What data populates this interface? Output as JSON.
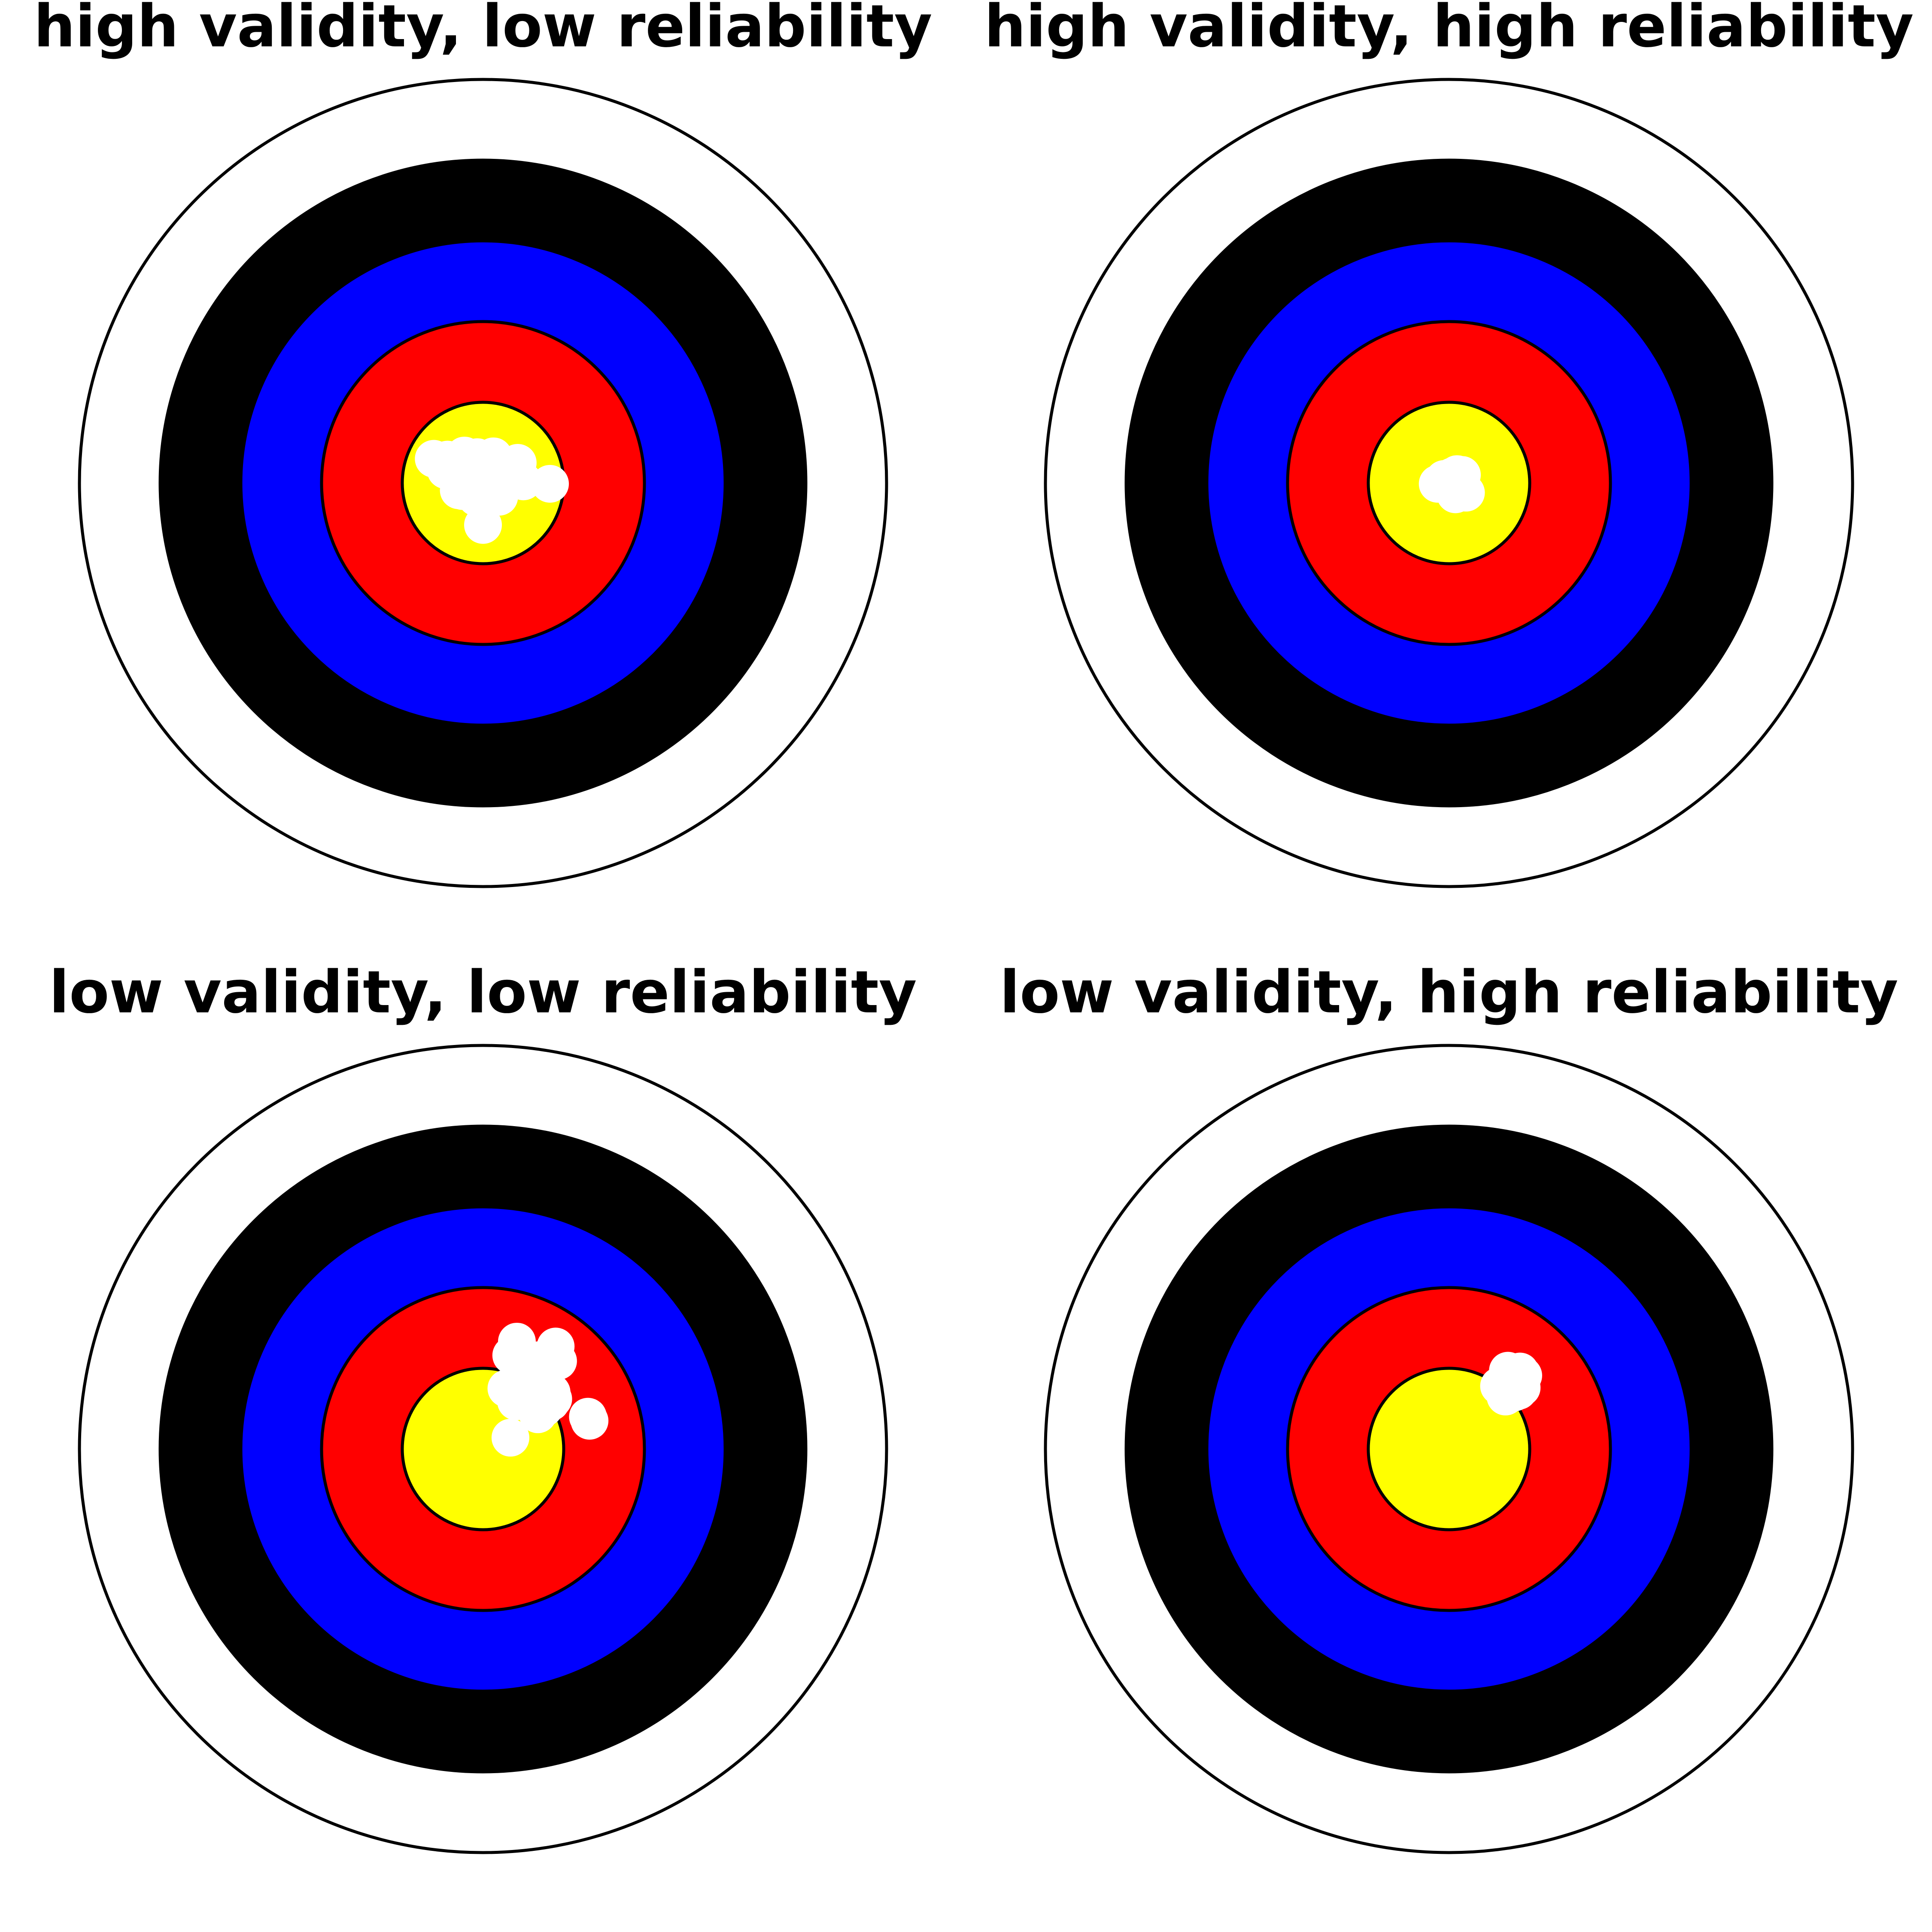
{
  "colors": {
    "background": "#ffffff",
    "outline": "#000000",
    "ring_outer": "#ffffff",
    "ring_black": "#000000",
    "ring_blue": "#0000ff",
    "ring_red": "#ff0000",
    "ring_gold": "#ffff00",
    "hit": "#ffffff"
  },
  "panels": [
    {
      "title": "high validity, low reliability",
      "hits": [
        [
          -0.61,
          0.3
        ],
        [
          -0.44,
          0.29
        ],
        [
          -0.23,
          0.34
        ],
        [
          -0.07,
          0.32
        ],
        [
          0.13,
          0.33
        ],
        [
          0.27,
          0.22
        ],
        [
          0.43,
          0.25
        ],
        [
          -0.46,
          0.16
        ],
        [
          -0.32,
          0.14
        ],
        [
          -0.17,
          0.13
        ],
        [
          0.05,
          0.2
        ],
        [
          0.31,
          0.11
        ],
        [
          -0.08,
          0.08
        ],
        [
          -0.14,
          0.01
        ],
        [
          0.43,
          0.04
        ],
        [
          0.5,
          0.02
        ],
        [
          0.83,
          -0.01
        ],
        [
          -0.3,
          -0.09
        ],
        [
          -0.25,
          -0.1
        ],
        [
          0.07,
          -0.18
        ],
        [
          0.2,
          -0.17
        ],
        [
          -0.09,
          -0.1
        ],
        [
          -0.08,
          -0.18
        ],
        [
          0.0,
          -0.52
        ]
      ]
    },
    {
      "title": "high validity, high reliability",
      "hits": [
        [
          -0.14,
          -0.01
        ],
        [
          -0.06,
          0.05
        ],
        [
          0.04,
          0.08
        ],
        [
          0.1,
          0.11
        ],
        [
          0.16,
          0.1
        ],
        [
          0.11,
          -0.05
        ],
        [
          0.17,
          -0.08
        ],
        [
          0.21,
          -0.12
        ],
        [
          0.08,
          -0.14
        ]
      ]
    },
    {
      "title": "low validity, low reliability",
      "hits": [
        [
          0.42,
          1.33
        ],
        [
          0.9,
          1.27
        ],
        [
          0.35,
          1.16
        ],
        [
          0.52,
          1.12
        ],
        [
          0.69,
          1.1
        ],
        [
          0.85,
          1.12
        ],
        [
          0.93,
          1.09
        ],
        [
          0.29,
          0.75
        ],
        [
          0.51,
          0.76
        ],
        [
          0.85,
          0.7
        ],
        [
          0.8,
          0.68
        ],
        [
          0.87,
          0.62
        ],
        [
          0.84,
          0.58
        ],
        [
          0.41,
          0.59
        ],
        [
          0.76,
          0.51
        ],
        [
          0.72,
          0.49
        ],
        [
          0.68,
          0.43
        ],
        [
          1.3,
          0.4
        ],
        [
          1.32,
          0.35
        ],
        [
          0.34,
          0.14
        ]
      ]
    },
    {
      "title": "low validity, high reliability",
      "hits": [
        [
          0.73,
          0.97
        ],
        [
          0.88,
          0.96
        ],
        [
          0.92,
          0.91
        ],
        [
          0.79,
          0.88
        ],
        [
          0.82,
          0.84
        ],
        [
          0.62,
          0.78
        ],
        [
          0.77,
          0.78
        ],
        [
          0.9,
          0.76
        ],
        [
          0.86,
          0.72
        ],
        [
          0.7,
          0.65
        ],
        [
          0.81,
          0.7
        ]
      ]
    }
  ]
}
